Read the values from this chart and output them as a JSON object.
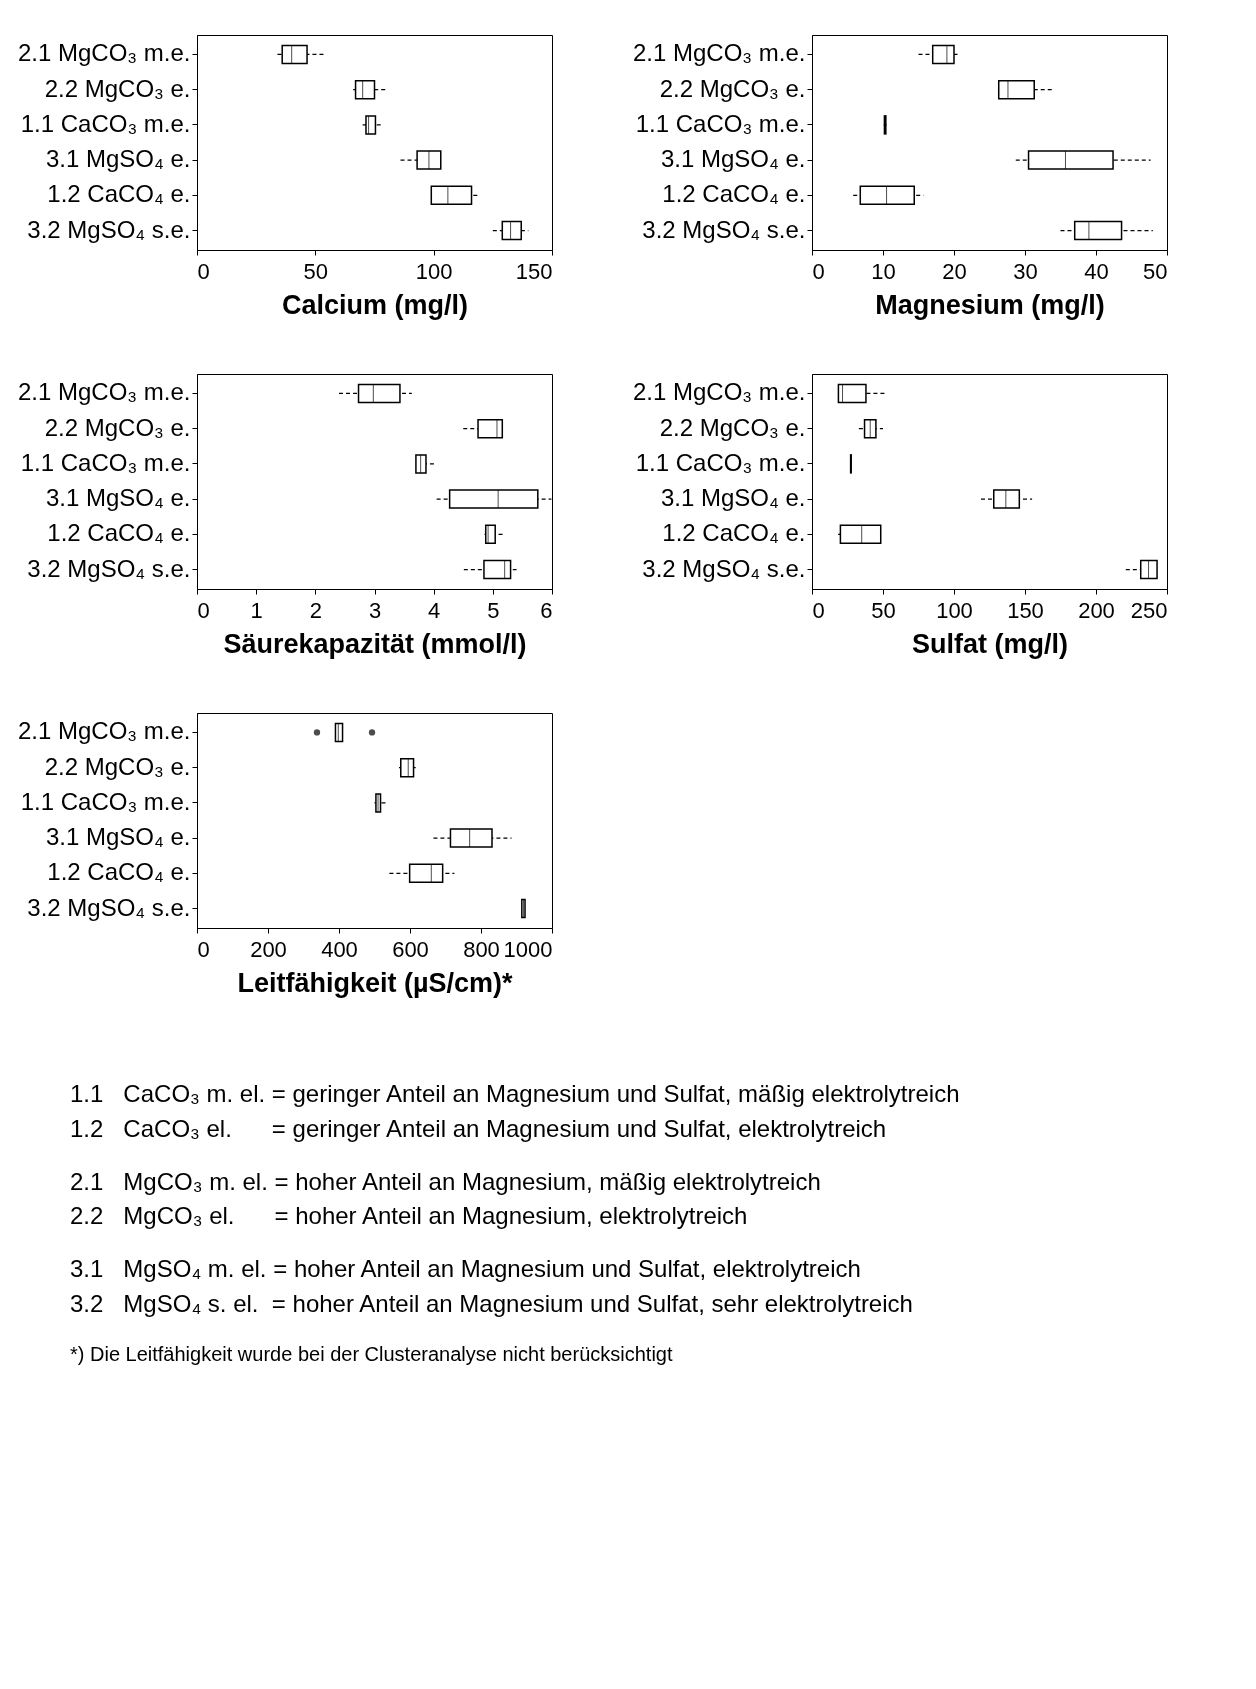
{
  "chart_data": [
    {
      "type": "box",
      "orientation": "horizontal",
      "xlabel": "Calcium (mg/l)",
      "categories": [
        "2.1 MgCO₃ m.e.",
        "2.2 MgCO₃ e.",
        "1.1 CaCO₃  m.e.",
        "3.1 MgSO₄ e.",
        "1.2 CaCO₄ e.",
        "3.2 MgSO₄ s.e."
      ],
      "xlim": [
        0,
        150
      ],
      "xticks": [
        0,
        50,
        100,
        150
      ],
      "boxes": [
        {
          "low": 34,
          "q1": 36,
          "median": 40,
          "q3": 46.5,
          "high": 54
        },
        {
          "low": 66,
          "q1": 67,
          "median": 70,
          "q3": 75,
          "high": 80
        },
        {
          "low": 70,
          "q1": 71.4,
          "median": 72.5,
          "q3": 75.4,
          "high": 78
        },
        {
          "low": 86,
          "q1": 93,
          "median": 98,
          "q3": 103,
          "high": 103
        },
        {
          "low": 99,
          "q1": 99,
          "median": 106,
          "q3": 116,
          "high": 119
        },
        {
          "low": 125,
          "q1": 129,
          "median": 132.5,
          "q3": 137,
          "high": 140
        }
      ]
    },
    {
      "type": "box",
      "orientation": "horizontal",
      "xlabel": "Magnesium (mg/l)",
      "categories": [
        "2.1 MgCO₃ m.e.",
        "2.2 MgCO₃ e.",
        "1.1 CaCO₃  m.e.",
        "3.1 MgSO₄ e.",
        "1.2 CaCO₄ e.",
        "3.2 MgSO₄ s.e."
      ],
      "xlim": [
        0,
        50
      ],
      "xticks": [
        0,
        10,
        20,
        30,
        40,
        50
      ],
      "boxes": [
        {
          "low": 15,
          "q1": 17,
          "median": 19,
          "q3": 20,
          "high": 20.7
        },
        {
          "low": 26.3,
          "q1": 26.3,
          "median": 27.6,
          "q3": 31.3,
          "high": 34
        },
        {
          "low": 10.1,
          "q1": 10.2,
          "median": 10.3,
          "q3": 10.4,
          "high": 10.5
        },
        {
          "low": 28.7,
          "q1": 30.5,
          "median": 35.7,
          "q3": 42.4,
          "high": 47.7
        },
        {
          "low": 5.8,
          "q1": 6.8,
          "median": 10.5,
          "q3": 14.4,
          "high": 15.7
        },
        {
          "low": 35,
          "q1": 37,
          "median": 39,
          "q3": 43.6,
          "high": 48
        }
      ]
    },
    {
      "type": "box",
      "orientation": "horizontal",
      "xlabel": "Säurekapazität (mmol/l)",
      "categories": [
        "2.1 MgCO₃ m.e.",
        "2.2 MgCO₃ e.",
        "1.1 CaCO₃  m.e.",
        "3.1 MgSO₄ e.",
        "1.2 CaCO₄ e.",
        "3.2 MgSO₄ s.e."
      ],
      "xlim": [
        0,
        6
      ],
      "xticks": [
        0,
        1,
        2,
        3,
        4,
        5,
        6
      ],
      "boxes": [
        {
          "low": 2.4,
          "q1": 2.73,
          "median": 2.98,
          "q3": 3.43,
          "high": 3.63
        },
        {
          "low": 4.5,
          "q1": 4.75,
          "median": 5.07,
          "q3": 5.16,
          "high": 5.16
        },
        {
          "low": 3.7,
          "q1": 3.7,
          "median": 3.78,
          "q3": 3.87,
          "high": 4.03
        },
        {
          "low": 4.05,
          "q1": 4.27,
          "median": 5.09,
          "q3": 5.76,
          "high": 5.99
        },
        {
          "low": 4.86,
          "q1": 4.88,
          "median": 4.92,
          "q3": 5.04,
          "high": 5.17
        },
        {
          "low": 4.51,
          "q1": 4.85,
          "median": 5.2,
          "q3": 5.3,
          "high": 5.4
        }
      ]
    },
    {
      "type": "box",
      "orientation": "horizontal",
      "xlabel": "Sulfat (mg/l)",
      "categories": [
        "2.1 MgCO₃ m.e.",
        "2.2 MgCO₃ e.",
        "1.1 CaCO₃  m.e.",
        "3.1 MgSO₄ e.",
        "1.2 CaCO₄ e.",
        "3.2 MgSO₄ s.e."
      ],
      "xlim": [
        0,
        250
      ],
      "xticks": [
        0,
        50,
        100,
        150,
        200,
        250
      ],
      "boxes": [
        {
          "low": 18.6,
          "q1": 18.6,
          "median": 21.5,
          "q3": 38,
          "high": 51
        },
        {
          "low": 33,
          "q1": 37,
          "median": 41,
          "q3": 45,
          "high": 50
        },
        {
          "low": 27,
          "q1": 27.2,
          "median": 27.4,
          "q3": 27.6,
          "high": 28
        },
        {
          "low": 119,
          "q1": 128,
          "median": 136.5,
          "q3": 146,
          "high": 155
        },
        {
          "low": 18.4,
          "q1": 20,
          "median": 35,
          "q3": 48.4,
          "high": 48.4
        },
        {
          "low": 221,
          "q1": 231.5,
          "median": 237,
          "q3": 243,
          "high": 243
        }
      ]
    },
    {
      "type": "box",
      "orientation": "horizontal",
      "xlabel": "Leitfähigkeit (µS/cm)*",
      "categories": [
        "2.1 MgCO₃ m.e.",
        "2.2 MgCO₃ e.",
        "1.1 CaCO₃  m.e.",
        "3.1 MgSO₄ e.",
        "1.2 CaCO₄ e.",
        "3.2 MgSO₄ s.e."
      ],
      "xlim": [
        0,
        1000
      ],
      "xticks": [
        0,
        200,
        400,
        600,
        800,
        1000
      ],
      "boxes": [
        {
          "low": 390,
          "q1": 390,
          "median": 398,
          "q3": 410,
          "high": 410,
          "outliers": [
            338,
            493
          ]
        },
        {
          "low": 569,
          "q1": 574,
          "median": 595,
          "q3": 610,
          "high": 616
        },
        {
          "low": 500,
          "q1": 504,
          "median": 510,
          "q3": 517,
          "high": 534
        },
        {
          "low": 666,
          "q1": 714,
          "median": 768,
          "q3": 831,
          "high": 886
        },
        {
          "low": 542,
          "q1": 599,
          "median": 660,
          "q3": 692,
          "high": 725
        },
        {
          "low": 915,
          "q1": 915,
          "median": 920,
          "q3": 924,
          "high": 924
        }
      ]
    },
    {
      "type": "other",
      "annotations": [
        "1.1   CaCO₃ m. el. = geringer Anteil an Magnesium und Sulfat, mäßig elektrolytreich",
        "1.2   CaCO₃ el.      = geringer Anteil an Magnesium und Sulfat, elektrolytreich",
        "2.1   MgCO₃ m. el. = hoher Anteil an Magnesium, mäßig elektrolytreich",
        "2.2   MgCO₃ el.      = hoher Anteil an Magnesium, elektrolytreich",
        "3.1   MgSO₄ m. el. = hoher Anteil an Magnesium und Sulfat, elektrolytreich",
        "3.2   MgSO₄ s. el.  = hoher Anteil an Magnesium und Sulfat, sehr elektrolytreich",
        "*) Die Leitfähigkeit wurde bei der Clusteranalyse nicht berücksichtigt"
      ]
    }
  ]
}
